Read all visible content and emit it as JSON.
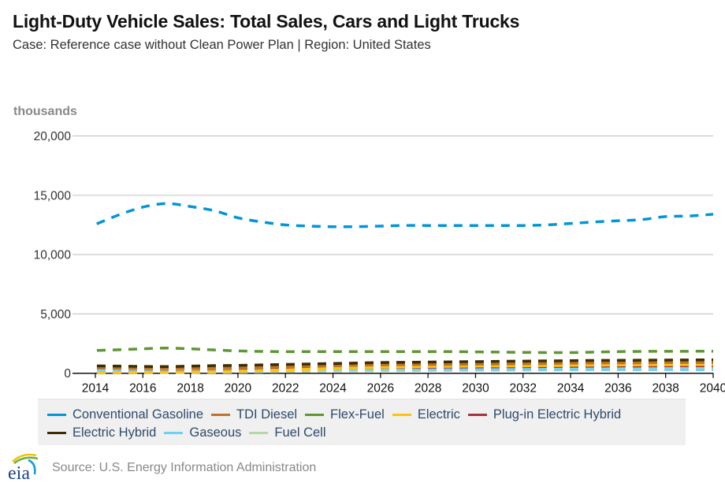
{
  "header": {
    "title": "Light-Duty Vehicle Sales: Total Sales, Cars and Light Trucks",
    "subtitle": "Case: Reference case without Clean Power Plan | Region: United States"
  },
  "footer": {
    "logo_text": "eia",
    "source": "Source: U.S. Energy Information Administration"
  },
  "chart_data": {
    "type": "line",
    "title": "Light-Duty Vehicle Sales: Total Sales, Cars and Light Trucks",
    "subtitle": "Case: Reference case without Clean Power Plan | Region: United States",
    "units_label": "thousands",
    "xlabel": "",
    "ylabel": "thousands",
    "ylim": [
      0,
      20000
    ],
    "xlim": [
      2014,
      2040
    ],
    "grid": true,
    "legend_position": "bottom",
    "y_ticks": [
      0,
      5000,
      10000,
      15000,
      20000
    ],
    "y_tick_labels": [
      "0",
      "5,000",
      "10,000",
      "15,000",
      "20,000"
    ],
    "x_ticks": [
      2014,
      2016,
      2018,
      2020,
      2022,
      2024,
      2026,
      2028,
      2030,
      2032,
      2034,
      2036,
      2038,
      2040
    ],
    "x_tick_labels": [
      "2014",
      "2016",
      "2018",
      "2020",
      "2022",
      "2024",
      "2026",
      "2028",
      "2030",
      "2032",
      "2034",
      "2036",
      "2038",
      "2040"
    ],
    "x": [
      2014,
      2015,
      2016,
      2017,
      2018,
      2019,
      2020,
      2021,
      2022,
      2023,
      2024,
      2025,
      2026,
      2027,
      2028,
      2029,
      2030,
      2031,
      2032,
      2033,
      2034,
      2035,
      2036,
      2037,
      2038,
      2039,
      2040
    ],
    "series": [
      {
        "name": "Conventional Gasoline",
        "color": "#0096d7",
        "values": [
          12540,
          13350,
          14000,
          14300,
          14050,
          13700,
          13100,
          12750,
          12500,
          12400,
          12350,
          12350,
          12400,
          12450,
          12450,
          12450,
          12450,
          12450,
          12450,
          12500,
          12620,
          12750,
          12850,
          12950,
          13200,
          13250,
          13400
        ]
      },
      {
        "name": "TDI Diesel",
        "color": "#bd732a",
        "values": [
          450,
          420,
          400,
          400,
          420,
          450,
          480,
          520,
          560,
          600,
          640,
          680,
          700,
          720,
          740,
          740,
          760,
          780,
          800,
          820,
          850,
          860,
          880,
          880,
          900,
          900,
          900
        ]
      },
      {
        "name": "Flex-Fuel",
        "color": "#5d9732",
        "values": [
          1920,
          1980,
          2060,
          2120,
          2060,
          1960,
          1880,
          1840,
          1820,
          1820,
          1820,
          1820,
          1820,
          1820,
          1820,
          1820,
          1800,
          1780,
          1760,
          1740,
          1740,
          1780,
          1820,
          1840,
          1850,
          1850,
          1860
        ]
      },
      {
        "name": "Electric",
        "color": "#ffc20e",
        "values": [
          60,
          70,
          80,
          90,
          110,
          140,
          180,
          230,
          280,
          340,
          400,
          450,
          500,
          530,
          560,
          580,
          600,
          610,
          620,
          640,
          660,
          680,
          690,
          700,
          710,
          720,
          730
        ]
      },
      {
        "name": "Plug-in Electric Hybrid",
        "color": "#a33340",
        "values": [
          60,
          70,
          90,
          110,
          140,
          180,
          230,
          280,
          330,
          380,
          420,
          460,
          490,
          500,
          510,
          520,
          530,
          540,
          550,
          560,
          570,
          580,
          590,
          590,
          600,
          600,
          600
        ]
      },
      {
        "name": "Electric Hybrid",
        "color": "#3d2e00",
        "values": [
          620,
          600,
          570,
          560,
          600,
          640,
          660,
          700,
          740,
          780,
          820,
          860,
          900,
          920,
          940,
          960,
          980,
          1000,
          1020,
          1040,
          1060,
          1080,
          1090,
          1100,
          1110,
          1120,
          1130
        ]
      },
      {
        "name": "Gaseous",
        "color": "#6fd0f6",
        "values": [
          300,
          300,
          310,
          320,
          330,
          340,
          340,
          350,
          350,
          350,
          350,
          350,
          350,
          340,
          340,
          340,
          330,
          330,
          330,
          320,
          320,
          320,
          310,
          310,
          310,
          300,
          300
        ]
      },
      {
        "name": "Fuel Cell",
        "color": "#b5d6a7",
        "values": [
          10,
          20,
          30,
          50,
          70,
          90,
          110,
          130,
          150,
          170,
          190,
          200,
          210,
          220,
          230,
          240,
          250,
          260,
          270,
          280,
          290,
          300,
          310,
          310,
          320,
          320,
          330
        ]
      }
    ]
  }
}
